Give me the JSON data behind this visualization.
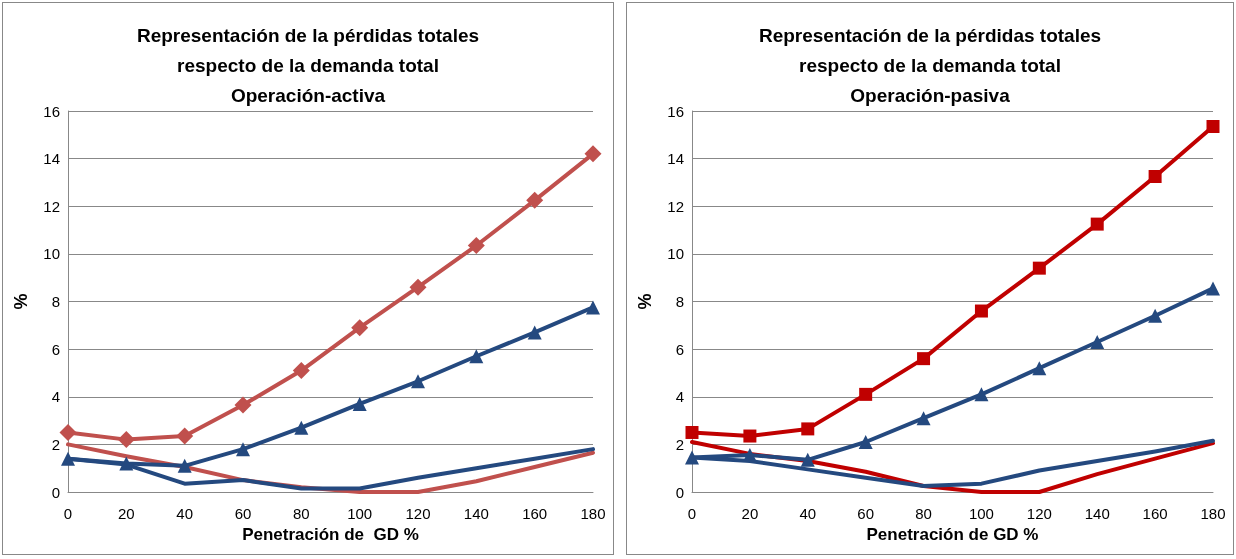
{
  "chart_data": [
    {
      "type": "line",
      "title": "Representación de la pérdidas totales\nrespecto de la demanda total\nOperación-activa",
      "xlabel": "Penetración de  GD %",
      "ylabel": "%",
      "categories": [
        "0",
        "20",
        "40",
        "60",
        "80",
        "100",
        "120",
        "140",
        "160",
        "180"
      ],
      "ylim": [
        0,
        16
      ],
      "yticks": [
        0,
        2,
        4,
        6,
        8,
        10,
        12,
        14,
        16
      ],
      "grid": "y",
      "line_style": "solid",
      "series": [
        {
          "color": "#c0504d",
          "marker": "diamond",
          "values": [
            2.5,
            2.2,
            2.35,
            3.65,
            5.1,
            6.9,
            8.6,
            10.35,
            12.25,
            14.2
          ]
        },
        {
          "color": "#24497f",
          "marker": "triangle",
          "values": [
            1.4,
            1.2,
            1.1,
            1.8,
            2.7,
            3.7,
            4.65,
            5.7,
            6.7,
            7.75
          ]
        },
        {
          "color": "#c0504d",
          "marker": "none",
          "values": [
            2.0,
            1.5,
            1.05,
            0.5,
            0.2,
            0,
            0,
            0.45,
            1.05,
            1.65
          ]
        },
        {
          "color": "#24497f",
          "marker": "none",
          "values": [
            1.4,
            1.15,
            0.35,
            0.5,
            0.15,
            0.15,
            0.6,
            1.0,
            1.4,
            1.8
          ]
        }
      ]
    },
    {
      "type": "line",
      "title": "Representación de la pérdidas totales\nrespecto de la demanda total\nOperación-pasiva",
      "xlabel": "Penetración de GD %",
      "ylabel": "%",
      "categories": [
        "0",
        "20",
        "40",
        "60",
        "80",
        "100",
        "120",
        "140",
        "160",
        "180"
      ],
      "ylim": [
        0,
        16
      ],
      "yticks": [
        0,
        2,
        4,
        6,
        8,
        10,
        12,
        14,
        16
      ],
      "grid": "y",
      "line_style": "solid",
      "series": [
        {
          "color": "#c00000",
          "marker": "square",
          "values": [
            2.5,
            2.35,
            2.65,
            4.1,
            5.6,
            7.6,
            9.4,
            11.25,
            13.25,
            15.35
          ]
        },
        {
          "color": "#24497f",
          "marker": "triangle",
          "values": [
            1.45,
            1.55,
            1.35,
            2.1,
            3.1,
            4.1,
            5.2,
            6.3,
            7.4,
            8.55
          ]
        },
        {
          "color": "#c00000",
          "marker": "none",
          "values": [
            2.1,
            1.6,
            1.3,
            0.85,
            0.25,
            0,
            0,
            0.75,
            1.4,
            2.05
          ]
        },
        {
          "color": "#24497f",
          "marker": "none",
          "values": [
            1.45,
            1.3,
            0.95,
            0.6,
            0.25,
            0.35,
            0.9,
            1.3,
            1.7,
            2.15
          ]
        }
      ]
    }
  ]
}
